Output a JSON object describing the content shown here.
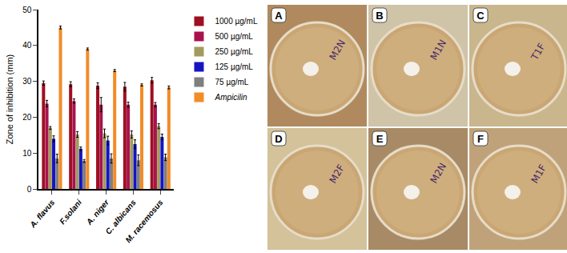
{
  "chart_data": {
    "type": "bar",
    "y_label": "Zone of inhibition (mm)",
    "categories": [
      "A. flavus",
      "F.solani",
      "A. niger",
      "C. albicans",
      "M. racemosus"
    ],
    "series": [
      {
        "name": "1000 µg/mL",
        "color": "#9e0f22",
        "values": [
          29.5,
          29.2,
          28.8,
          28.5,
          30.3
        ],
        "errors": [
          0.6,
          0.7,
          0.8,
          1.2,
          0.8
        ]
      },
      {
        "name": "500 µg/mL",
        "color": "#a8124e",
        "values": [
          23.8,
          24.5,
          23.5,
          23.5,
          23.5
        ],
        "errors": [
          0.9,
          0.6,
          2.0,
          0.7,
          0.6
        ]
      },
      {
        "name": "250 µg/mL",
        "color": "#a39b5e",
        "values": [
          17.0,
          15.2,
          15.5,
          15.2,
          17.5
        ],
        "errors": [
          0.4,
          0.8,
          1.2,
          1.0,
          0.7
        ]
      },
      {
        "name": "125 µg/mL",
        "color": "#1414c4",
        "values": [
          14.0,
          11.2,
          13.5,
          12.5,
          14.5
        ],
        "errors": [
          0.8,
          0.5,
          1.2,
          1.2,
          0.8
        ]
      },
      {
        "name": "75 µg/mL",
        "color": "#7f7f7f",
        "values": [
          8.5,
          7.8,
          8.5,
          8.0,
          8.8
        ],
        "errors": [
          1.2,
          0.4,
          1.3,
          1.5,
          0.9
        ]
      },
      {
        "name": "Ampicilin",
        "color": "#f28c28",
        "values": [
          45.0,
          39.0,
          33.0,
          29.0,
          28.3
        ],
        "errors": [
          0.4,
          0.3,
          0.3,
          0.3,
          0.4
        ]
      }
    ],
    "ylim": [
      0,
      50
    ],
    "yticks": [
      0,
      10,
      20,
      30,
      40,
      50
    ],
    "grid": false,
    "legend": "right"
  },
  "panels": [
    {
      "label": "A",
      "text": "M2N"
    },
    {
      "label": "B",
      "text": "M1N"
    },
    {
      "label": "C",
      "text": "T1F"
    },
    {
      "label": "D",
      "text": "M2F"
    },
    {
      "label": "E",
      "text": "M2N"
    },
    {
      "label": "F",
      "text": "M1F"
    }
  ]
}
